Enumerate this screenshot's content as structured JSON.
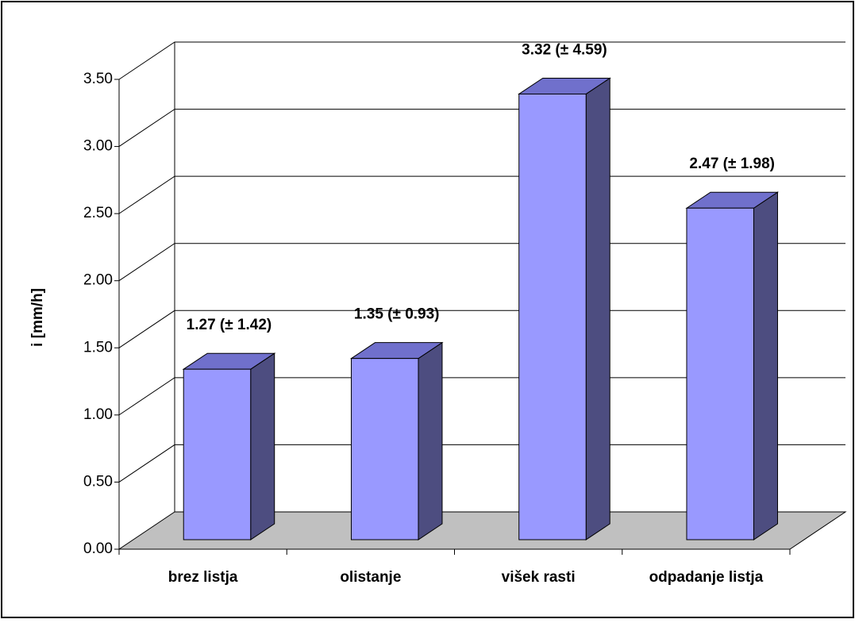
{
  "chart_data": {
    "type": "bar3d",
    "y_label": "i [mm/h]",
    "categories": [
      "brez listja",
      "olistanje",
      "višek rasti",
      "odpadanje listja"
    ],
    "values": [
      1.27,
      1.35,
      3.32,
      2.47
    ],
    "value_labels": [
      "1.27 (± 1.42)",
      "1.35 (± 0.93)",
      "3.32 (± 4.59)",
      "2.47 (± 1.98)"
    ],
    "color": "#9999ff",
    "ylim": [
      0,
      3.5
    ],
    "yticks": [
      {
        "value": 0,
        "label": "0.00"
      },
      {
        "value": 0.5,
        "label": "0.50"
      },
      {
        "value": 1,
        "label": "1.00"
      },
      {
        "value": 1.5,
        "label": "1.50"
      },
      {
        "value": 2,
        "label": "2.00"
      },
      {
        "value": 2.5,
        "label": "2.50"
      },
      {
        "value": 3,
        "label": "3.00"
      },
      {
        "value": 3.5,
        "label": "3.50"
      }
    ],
    "grid": true
  }
}
